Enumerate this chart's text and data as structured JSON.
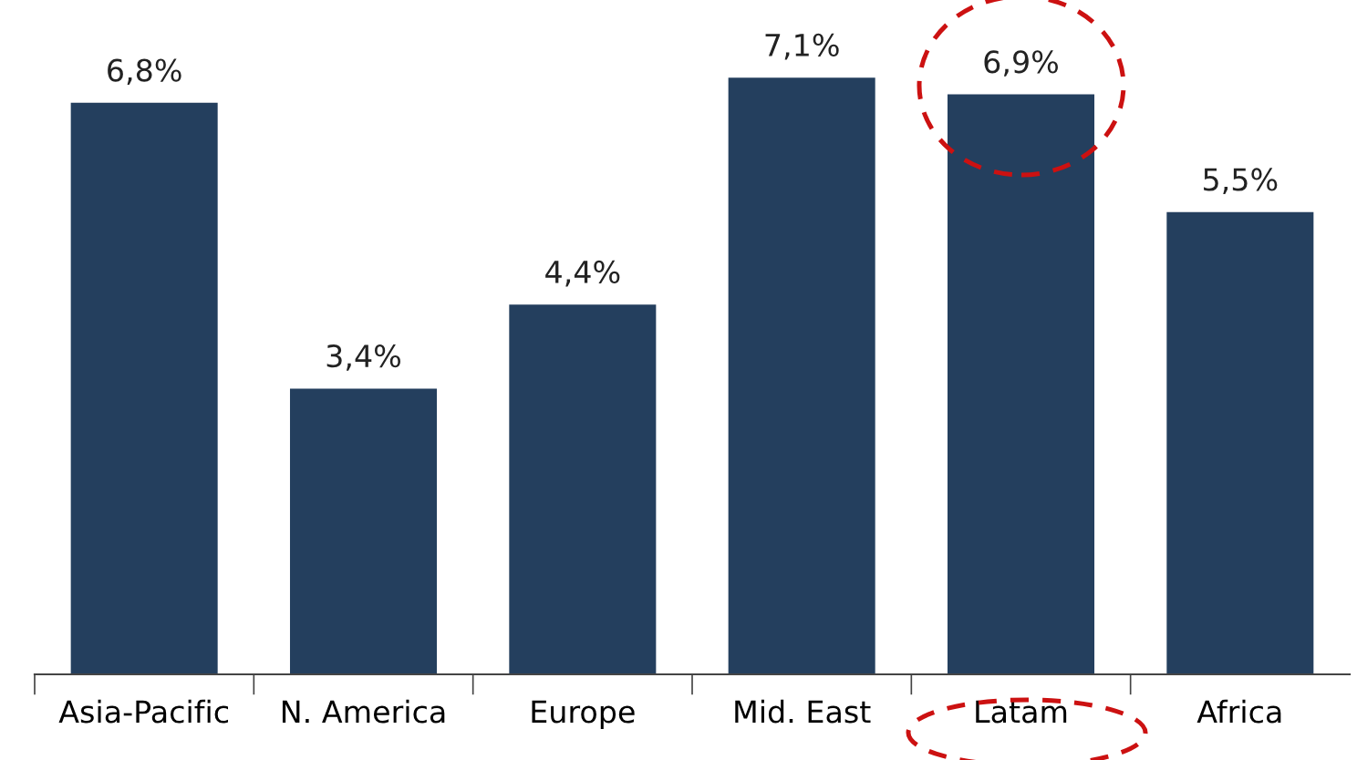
{
  "chart_data": {
    "type": "bar",
    "categories": [
      "Asia-Pacific",
      "N. America",
      "Europe",
      "Mid. East",
      "Latam",
      "Africa"
    ],
    "values": [
      6.8,
      3.4,
      4.4,
      7.1,
      6.9,
      5.5
    ],
    "value_labels": [
      "6,8%",
      "3,4%",
      "4,4%",
      "7,1%",
      "6,9%",
      "5,5%"
    ],
    "color": "#243f5e",
    "grid": false,
    "legend": false
  }
}
